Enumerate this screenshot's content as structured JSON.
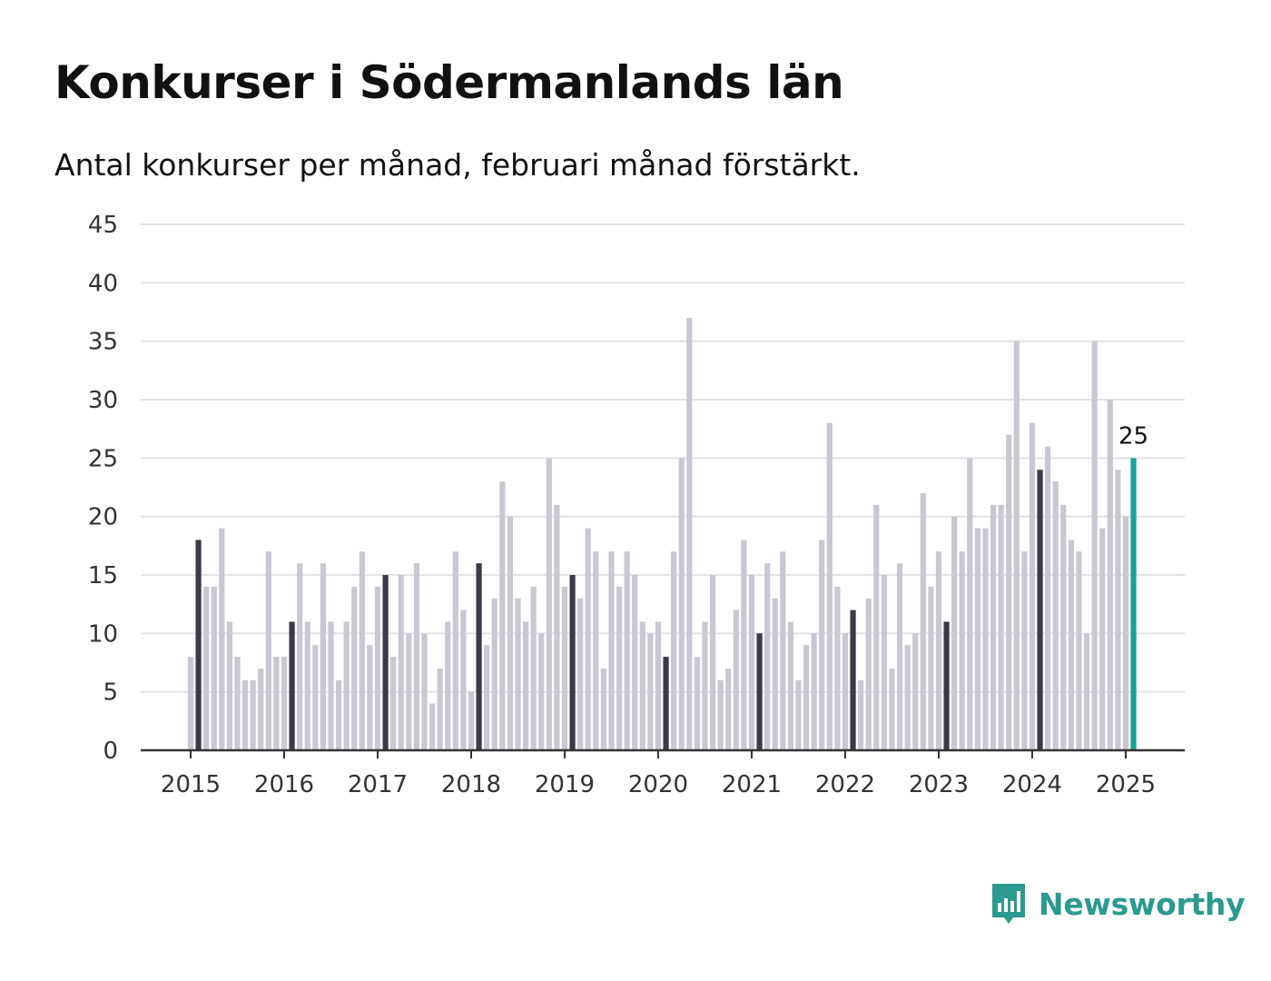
{
  "title": "Konkurser i Södermanlands län",
  "subtitle": "Antal konkurser per månad, februari månad förstärkt.",
  "brand": {
    "name": "Newsworthy",
    "icon": "bar-chart-speech-icon"
  },
  "colors": {
    "bar_default": "#c9c8d2",
    "bar_february": "#3b3a48",
    "bar_latest": "#15a39a",
    "gridline": "#e3e3e6",
    "axis": "#333333",
    "brand": "#2b9a90"
  },
  "chart_data": {
    "type": "bar",
    "title": "Konkurser i Södermanlands län",
    "subtitle": "Antal konkurser per månad, februari månad förstärkt.",
    "xlabel": "",
    "ylabel": "",
    "ylim": [
      0,
      45
    ],
    "y_ticks": [
      "0",
      "5",
      "10",
      "15",
      "20",
      "25",
      "30",
      "35",
      "40",
      "45"
    ],
    "x_tick_labels": [
      "2015",
      "2016",
      "2017",
      "2018",
      "2019",
      "2020",
      "2021",
      "2022",
      "2023",
      "2024",
      "2025"
    ],
    "grid": true,
    "start": "2015-01",
    "highlight": "february",
    "latest_label": "25",
    "values": [
      8,
      18,
      14,
      14,
      19,
      11,
      8,
      6,
      6,
      7,
      17,
      8,
      8,
      11,
      16,
      11,
      9,
      16,
      11,
      6,
      11,
      14,
      17,
      9,
      14,
      15,
      8,
      15,
      10,
      16,
      10,
      4,
      7,
      11,
      17,
      12,
      5,
      16,
      9,
      13,
      23,
      20,
      13,
      11,
      14,
      10,
      25,
      21,
      14,
      15,
      13,
      19,
      17,
      7,
      17,
      14,
      17,
      15,
      11,
      10,
      11,
      8,
      17,
      25,
      37,
      8,
      11,
      15,
      6,
      7,
      12,
      18,
      15,
      10,
      16,
      13,
      17,
      11,
      6,
      9,
      10,
      18,
      28,
      14,
      10,
      12,
      6,
      13,
      21,
      15,
      7,
      16,
      9,
      10,
      22,
      14,
      17,
      11,
      20,
      17,
      25,
      19,
      19,
      21,
      21,
      27,
      35,
      17,
      28,
      24,
      26,
      23,
      21,
      18,
      17,
      10,
      35,
      19,
      30,
      24,
      20,
      25
    ]
  }
}
